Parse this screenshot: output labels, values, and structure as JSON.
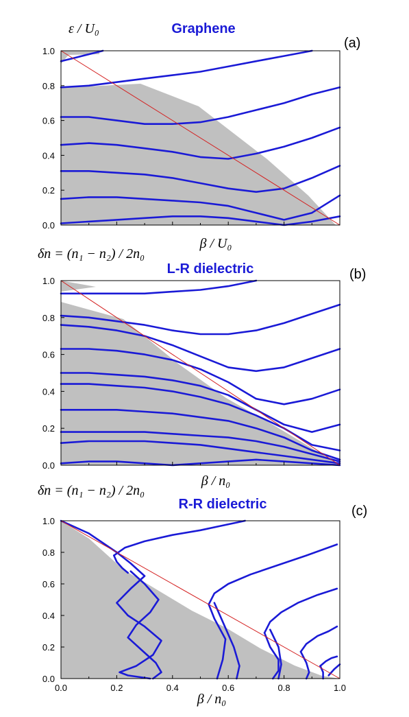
{
  "colors": {
    "curve": "#1a1ad6",
    "diagonal": "#d42020",
    "fill": "#c0c0c0",
    "axis": "#000000"
  },
  "chart_data": [
    {
      "type": "line",
      "title": "Graphene",
      "panel_label": "(a)",
      "ylabel": "ε / U₀",
      "xlabel": "β / U₀",
      "xlim": [
        0,
        1.0
      ],
      "ylim": [
        0,
        1.0
      ],
      "yticks": [
        "0.0",
        "0.2",
        "0.4",
        "0.6",
        "0.8",
        "1.0"
      ],
      "xticks": [],
      "diagonal": [
        [
          0,
          1.0
        ],
        [
          1.0,
          0
        ]
      ],
      "series": [
        {
          "x": [
            0.0,
            0.1,
            0.2,
            0.3,
            0.4,
            0.5,
            0.6,
            0.7,
            0.8,
            0.9
          ],
          "y": [
            0.79,
            0.8,
            0.82,
            0.84,
            0.86,
            0.88,
            0.91,
            0.94,
            0.97,
            1.0
          ]
        },
        {
          "x": [
            0.0,
            0.1,
            0.2,
            0.3,
            0.4,
            0.5,
            0.6,
            0.7,
            0.8,
            0.9,
            1.0
          ],
          "y": [
            0.62,
            0.62,
            0.6,
            0.58,
            0.58,
            0.59,
            0.62,
            0.66,
            0.7,
            0.75,
            0.79
          ]
        },
        {
          "x": [
            0.0,
            0.1,
            0.2,
            0.3,
            0.4,
            0.5,
            0.6,
            0.7,
            0.8,
            0.9,
            1.0
          ],
          "y": [
            0.46,
            0.47,
            0.46,
            0.44,
            0.42,
            0.39,
            0.38,
            0.41,
            0.45,
            0.5,
            0.56
          ]
        },
        {
          "x": [
            0.0,
            0.1,
            0.2,
            0.3,
            0.4,
            0.5,
            0.6,
            0.7,
            0.8,
            0.9,
            1.0
          ],
          "y": [
            0.31,
            0.31,
            0.3,
            0.29,
            0.27,
            0.24,
            0.21,
            0.19,
            0.21,
            0.27,
            0.34
          ]
        },
        {
          "x": [
            0.0,
            0.1,
            0.2,
            0.3,
            0.4,
            0.5,
            0.6,
            0.7,
            0.8,
            0.9,
            1.0
          ],
          "y": [
            0.15,
            0.16,
            0.16,
            0.15,
            0.14,
            0.13,
            0.11,
            0.07,
            0.03,
            0.07,
            0.17
          ]
        },
        {
          "x": [
            0.0,
            0.1,
            0.2,
            0.3,
            0.4,
            0.5,
            0.6,
            0.7,
            0.8,
            0.9,
            1.0
          ],
          "y": [
            0.01,
            0.02,
            0.03,
            0.04,
            0.05,
            0.05,
            0.04,
            0.02,
            0.0,
            0.02,
            0.05
          ]
        },
        {
          "x": [
            0.0,
            0.05,
            0.1,
            0.15
          ],
          "y": [
            0.94,
            0.96,
            0.98,
            1.0
          ]
        }
      ]
    },
    {
      "type": "line",
      "title": "L-R dielectric",
      "panel_label": "(b)",
      "ylabel": "δn = (n₁ − n₂) / 2n₀",
      "xlabel": "β / n₀",
      "xlim": [
        0,
        1.0
      ],
      "ylim": [
        0,
        1.0
      ],
      "yticks": [
        "0.0",
        "0.2",
        "0.4",
        "0.6",
        "0.8",
        "1.0"
      ],
      "xticks": [],
      "diagonal": [
        [
          0,
          1.0
        ],
        [
          1.0,
          0
        ]
      ],
      "series": [
        {
          "x": [
            0.0,
            0.1,
            0.2,
            0.3,
            0.4,
            0.5,
            0.6,
            0.7
          ],
          "y": [
            0.93,
            0.93,
            0.93,
            0.93,
            0.94,
            0.95,
            0.97,
            1.0
          ]
        },
        {
          "x": [
            0.0,
            0.1,
            0.2,
            0.3,
            0.4,
            0.5,
            0.6,
            0.7,
            0.8,
            0.9,
            1.0
          ],
          "y": [
            0.81,
            0.8,
            0.78,
            0.76,
            0.73,
            0.71,
            0.71,
            0.73,
            0.77,
            0.82,
            0.87
          ]
        },
        {
          "x": [
            0.0,
            0.1,
            0.2,
            0.3,
            0.4,
            0.5,
            0.6,
            0.7,
            0.8,
            0.9,
            1.0
          ],
          "y": [
            0.76,
            0.75,
            0.73,
            0.7,
            0.65,
            0.59,
            0.53,
            0.51,
            0.53,
            0.58,
            0.63
          ]
        },
        {
          "x": [
            0.0,
            0.1,
            0.2,
            0.3,
            0.4,
            0.5,
            0.6,
            0.7,
            0.8,
            0.9,
            1.0
          ],
          "y": [
            0.63,
            0.63,
            0.62,
            0.6,
            0.57,
            0.52,
            0.45,
            0.36,
            0.33,
            0.36,
            0.41
          ]
        },
        {
          "x": [
            0.0,
            0.1,
            0.2,
            0.3,
            0.4,
            0.5,
            0.6,
            0.7,
            0.8,
            0.9,
            1.0
          ],
          "y": [
            0.5,
            0.5,
            0.49,
            0.48,
            0.46,
            0.43,
            0.38,
            0.3,
            0.22,
            0.18,
            0.22
          ]
        },
        {
          "x": [
            0.0,
            0.1,
            0.2,
            0.3,
            0.4,
            0.5,
            0.6,
            0.7,
            0.8,
            0.9,
            1.0
          ],
          "y": [
            0.44,
            0.44,
            0.43,
            0.42,
            0.4,
            0.37,
            0.33,
            0.27,
            0.2,
            0.11,
            0.08
          ]
        },
        {
          "x": [
            0.0,
            0.1,
            0.2,
            0.3,
            0.4,
            0.5,
            0.6,
            0.7,
            0.8,
            0.9,
            1.0
          ],
          "y": [
            0.3,
            0.3,
            0.3,
            0.29,
            0.28,
            0.26,
            0.24,
            0.2,
            0.15,
            0.08,
            0.03
          ]
        },
        {
          "x": [
            0.0,
            0.1,
            0.2,
            0.3,
            0.4,
            0.5,
            0.6,
            0.7,
            0.8,
            0.9,
            1.0
          ],
          "y": [
            0.18,
            0.18,
            0.18,
            0.18,
            0.17,
            0.16,
            0.15,
            0.13,
            0.1,
            0.06,
            0.02
          ]
        },
        {
          "x": [
            0.0,
            0.1,
            0.2,
            0.3,
            0.4,
            0.5,
            0.6,
            0.7,
            0.8,
            0.9,
            1.0
          ],
          "y": [
            0.12,
            0.13,
            0.13,
            0.13,
            0.12,
            0.11,
            0.09,
            0.07,
            0.05,
            0.03,
            0.01
          ]
        },
        {
          "x": [
            0.0,
            0.1,
            0.2,
            0.3,
            0.4,
            0.5,
            0.6,
            0.7,
            0.8,
            0.9,
            1.0
          ],
          "y": [
            0.01,
            0.02,
            0.02,
            0.01,
            0.0,
            0.01,
            0.02,
            0.03,
            0.02,
            0.01,
            0.0
          ]
        }
      ]
    },
    {
      "type": "line",
      "title": "R-R dielectric",
      "panel_label": "(c)",
      "ylabel": "δn = (n₁ − n₂) / 2n₀",
      "xlabel": "β / n₀",
      "xlim": [
        0,
        1.0
      ],
      "ylim": [
        0,
        1.0
      ],
      "yticks": [
        "0.0",
        "0.2",
        "0.4",
        "0.6",
        "0.8",
        "1.0"
      ],
      "xticks": [
        "0.0",
        "0.2",
        "0.4",
        "0.6",
        "0.8",
        "1.0"
      ],
      "diagonal": [
        [
          0,
          1.0
        ],
        [
          1.0,
          0
        ]
      ],
      "series": [
        {
          "x": [
            0.0,
            0.1,
            0.2,
            0.25,
            0.3,
            0.25,
            0.2,
            0.24,
            0.3,
            0.36,
            0.33,
            0.27,
            0.21,
            0.24,
            0.32
          ],
          "y": [
            1.0,
            0.92,
            0.8,
            0.73,
            0.65,
            0.57,
            0.48,
            0.4,
            0.33,
            0.24,
            0.15,
            0.08,
            0.04,
            0.02,
            0.0
          ]
        },
        {
          "x": [
            0.25,
            0.3,
            0.35,
            0.32,
            0.27,
            0.24,
            0.29,
            0.34,
            0.36,
            0.33
          ],
          "y": [
            0.68,
            0.6,
            0.5,
            0.42,
            0.34,
            0.26,
            0.18,
            0.1,
            0.04,
            0.0
          ]
        },
        {
          "x": [
            0.19,
            0.23,
            0.3,
            0.4,
            0.5,
            0.58,
            0.66
          ],
          "y": [
            0.78,
            0.83,
            0.87,
            0.91,
            0.94,
            0.97,
            1.0
          ]
        },
        {
          "x": [
            0.19,
            0.2,
            0.22,
            0.24
          ],
          "y": [
            0.78,
            0.74,
            0.7,
            0.67
          ]
        },
        {
          "x": [
            0.53,
            0.55,
            0.6,
            0.68,
            0.78,
            0.88,
            0.99
          ],
          "y": [
            0.47,
            0.54,
            0.6,
            0.66,
            0.72,
            0.78,
            0.85
          ]
        },
        {
          "x": [
            0.53,
            0.55,
            0.59,
            0.58,
            0.56
          ],
          "y": [
            0.47,
            0.38,
            0.25,
            0.12,
            0.0
          ]
        },
        {
          "x": [
            0.55,
            0.58,
            0.62,
            0.64,
            0.63
          ],
          "y": [
            0.48,
            0.36,
            0.2,
            0.08,
            0.0
          ]
        },
        {
          "x": [
            0.73,
            0.75,
            0.79,
            0.85,
            0.92,
            0.99
          ],
          "y": [
            0.29,
            0.36,
            0.42,
            0.48,
            0.53,
            0.57
          ]
        },
        {
          "x": [
            0.73,
            0.75,
            0.78,
            0.78,
            0.76
          ],
          "y": [
            0.29,
            0.2,
            0.12,
            0.05,
            0.0
          ]
        },
        {
          "x": [
            0.75,
            0.78,
            0.79,
            0.78
          ],
          "y": [
            0.31,
            0.2,
            0.09,
            0.0
          ]
        },
        {
          "x": [
            0.86,
            0.88,
            0.92,
            0.96,
            0.99
          ],
          "y": [
            0.17,
            0.22,
            0.27,
            0.3,
            0.33
          ]
        },
        {
          "x": [
            0.86,
            0.88,
            0.89,
            0.88
          ],
          "y": [
            0.17,
            0.1,
            0.04,
            0.0
          ]
        },
        {
          "x": [
            0.93,
            0.95,
            0.97,
            0.99
          ],
          "y": [
            0.08,
            0.11,
            0.13,
            0.14
          ]
        },
        {
          "x": [
            0.93,
            0.94,
            0.94
          ],
          "y": [
            0.08,
            0.04,
            0.0
          ]
        },
        {
          "x": [
            0.96,
            0.98,
            1.0
          ],
          "y": [
            0.02,
            0.06,
            0.09
          ]
        }
      ]
    }
  ]
}
